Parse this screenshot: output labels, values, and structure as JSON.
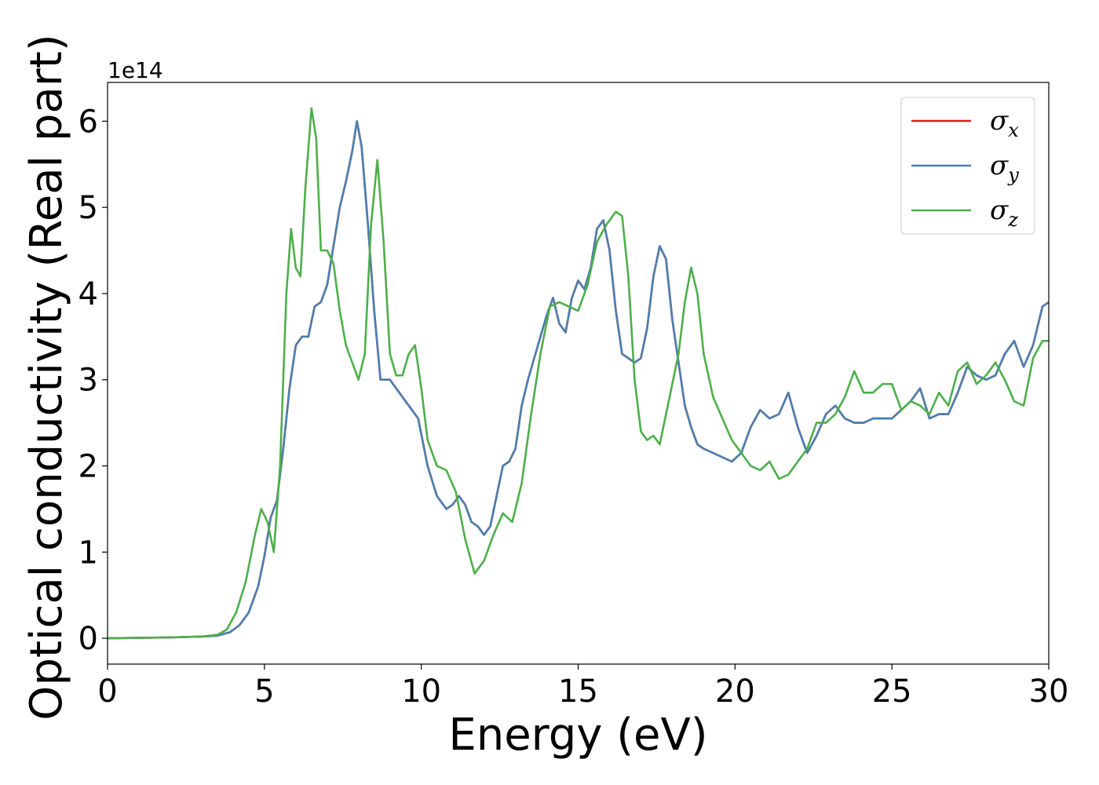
{
  "chart_data": {
    "type": "line",
    "xlabel": "Energy (eV)",
    "ylabel": "Optical conductivity (Real part)",
    "y_offset_text": "1e14",
    "xlim": [
      0,
      30
    ],
    "ylim": [
      -0.3,
      6.45
    ],
    "xticks": [
      0,
      5,
      10,
      15,
      20,
      25,
      30
    ],
    "yticks": [
      0,
      1,
      2,
      3,
      4,
      5,
      6
    ],
    "grid": false,
    "legend_position": "top-right",
    "series": [
      {
        "name": "σx",
        "symbol": "σ",
        "subscript": "x",
        "color": "#e41a1c",
        "x": [
          0,
          2,
          3,
          3.5,
          3.9,
          4.2,
          4.5,
          4.8,
          5,
          5.2,
          5.4,
          5.6,
          5.8,
          6,
          6.2,
          6.4,
          6.6,
          6.8,
          7,
          7.2,
          7.4,
          7.6,
          7.8,
          7.95,
          8.1,
          8.3,
          8.5,
          8.7,
          9,
          9.3,
          9.6,
          9.9,
          10.2,
          10.5,
          10.8,
          11,
          11.2,
          11.4,
          11.6,
          11.8,
          12,
          12.2,
          12.4,
          12.6,
          12.8,
          13,
          13.2,
          13.4,
          13.6,
          13.8,
          14,
          14.2,
          14.4,
          14.6,
          14.8,
          15,
          15.2,
          15.4,
          15.6,
          15.8,
          16,
          16.2,
          16.4,
          16.6,
          16.8,
          17,
          17.2,
          17.4,
          17.6,
          17.8,
          18,
          18.2,
          18.4,
          18.6,
          18.8,
          19,
          19.3,
          19.6,
          19.9,
          20.2,
          20.5,
          20.8,
          21.1,
          21.4,
          21.7,
          22,
          22.3,
          22.6,
          22.9,
          23.2,
          23.5,
          23.8,
          24.1,
          24.4,
          24.7,
          25,
          25.3,
          25.6,
          25.9,
          26.2,
          26.5,
          26.8,
          27.1,
          27.4,
          27.7,
          28,
          28.3,
          28.6,
          28.9,
          29.2,
          29.5,
          29.8,
          30
        ],
        "y": [
          0,
          0.01,
          0.02,
          0.03,
          0.07,
          0.15,
          0.3,
          0.6,
          0.95,
          1.4,
          1.6,
          2.2,
          2.9,
          3.4,
          3.5,
          3.5,
          3.85,
          3.9,
          4.1,
          4.55,
          5.0,
          5.3,
          5.65,
          6.0,
          5.7,
          4.8,
          3.8,
          3.0,
          3.0,
          2.85,
          2.7,
          2.55,
          2.0,
          1.65,
          1.5,
          1.55,
          1.65,
          1.55,
          1.35,
          1.3,
          1.2,
          1.3,
          1.65,
          2.0,
          2.05,
          2.2,
          2.7,
          3.0,
          3.25,
          3.5,
          3.75,
          3.95,
          3.65,
          3.55,
          3.95,
          4.15,
          4.05,
          4.3,
          4.75,
          4.85,
          4.5,
          3.8,
          3.3,
          3.25,
          3.2,
          3.25,
          3.6,
          4.2,
          4.55,
          4.4,
          3.7,
          3.2,
          2.7,
          2.45,
          2.25,
          2.2,
          2.15,
          2.1,
          2.05,
          2.15,
          2.45,
          2.65,
          2.55,
          2.6,
          2.85,
          2.45,
          2.15,
          2.35,
          2.6,
          2.7,
          2.55,
          2.5,
          2.5,
          2.55,
          2.55,
          2.55,
          2.65,
          2.75,
          2.9,
          2.55,
          2.6,
          2.6,
          2.85,
          3.15,
          3.05,
          3.0,
          3.05,
          3.3,
          3.45,
          3.15,
          3.4,
          3.85,
          3.9
        ]
      },
      {
        "name": "σy",
        "symbol": "σ",
        "subscript": "y",
        "color": "#4a7fb0",
        "x": [
          0,
          2,
          3,
          3.5,
          3.9,
          4.2,
          4.5,
          4.8,
          5,
          5.2,
          5.4,
          5.6,
          5.8,
          6,
          6.2,
          6.4,
          6.6,
          6.8,
          7,
          7.2,
          7.4,
          7.6,
          7.8,
          7.95,
          8.1,
          8.3,
          8.5,
          8.7,
          9,
          9.3,
          9.6,
          9.9,
          10.2,
          10.5,
          10.8,
          11,
          11.2,
          11.4,
          11.6,
          11.8,
          12,
          12.2,
          12.4,
          12.6,
          12.8,
          13,
          13.2,
          13.4,
          13.6,
          13.8,
          14,
          14.2,
          14.4,
          14.6,
          14.8,
          15,
          15.2,
          15.4,
          15.6,
          15.8,
          16,
          16.2,
          16.4,
          16.6,
          16.8,
          17,
          17.2,
          17.4,
          17.6,
          17.8,
          18,
          18.2,
          18.4,
          18.6,
          18.8,
          19,
          19.3,
          19.6,
          19.9,
          20.2,
          20.5,
          20.8,
          21.1,
          21.4,
          21.7,
          22,
          22.3,
          22.6,
          22.9,
          23.2,
          23.5,
          23.8,
          24.1,
          24.4,
          24.7,
          25,
          25.3,
          25.6,
          25.9,
          26.2,
          26.5,
          26.8,
          27.1,
          27.4,
          27.7,
          28,
          28.3,
          28.6,
          28.9,
          29.2,
          29.5,
          29.8,
          30
        ],
        "y": [
          0,
          0.01,
          0.02,
          0.03,
          0.07,
          0.15,
          0.3,
          0.6,
          0.95,
          1.4,
          1.6,
          2.2,
          2.9,
          3.4,
          3.5,
          3.5,
          3.85,
          3.9,
          4.1,
          4.55,
          5.0,
          5.3,
          5.65,
          6.0,
          5.7,
          4.8,
          3.8,
          3.0,
          3.0,
          2.85,
          2.7,
          2.55,
          2.0,
          1.65,
          1.5,
          1.55,
          1.65,
          1.55,
          1.35,
          1.3,
          1.2,
          1.3,
          1.65,
          2.0,
          2.05,
          2.2,
          2.7,
          3.0,
          3.25,
          3.5,
          3.75,
          3.95,
          3.65,
          3.55,
          3.95,
          4.15,
          4.05,
          4.3,
          4.75,
          4.85,
          4.5,
          3.8,
          3.3,
          3.25,
          3.2,
          3.25,
          3.6,
          4.2,
          4.55,
          4.4,
          3.7,
          3.2,
          2.7,
          2.45,
          2.25,
          2.2,
          2.15,
          2.1,
          2.05,
          2.15,
          2.45,
          2.65,
          2.55,
          2.6,
          2.85,
          2.45,
          2.15,
          2.35,
          2.6,
          2.7,
          2.55,
          2.5,
          2.5,
          2.55,
          2.55,
          2.55,
          2.65,
          2.75,
          2.9,
          2.55,
          2.6,
          2.6,
          2.85,
          3.15,
          3.05,
          3.0,
          3.05,
          3.3,
          3.45,
          3.15,
          3.4,
          3.85,
          3.9
        ]
      },
      {
        "name": "σz",
        "symbol": "σ",
        "subscript": "z",
        "color": "#4daf4a",
        "x": [
          0,
          2,
          3,
          3.5,
          3.8,
          4.1,
          4.4,
          4.7,
          4.9,
          5.1,
          5.3,
          5.5,
          5.7,
          5.85,
          6.0,
          6.15,
          6.3,
          6.5,
          6.65,
          6.8,
          7.0,
          7.2,
          7.4,
          7.6,
          7.8,
          8.0,
          8.2,
          8.4,
          8.6,
          8.8,
          9.0,
          9.2,
          9.4,
          9.6,
          9.8,
          10.0,
          10.2,
          10.5,
          10.8,
          11.1,
          11.4,
          11.7,
          12.0,
          12.3,
          12.6,
          12.9,
          13.2,
          13.5,
          13.8,
          14.1,
          14.4,
          14.7,
          15.0,
          15.3,
          15.6,
          15.9,
          16.2,
          16.4,
          16.6,
          16.8,
          17.0,
          17.2,
          17.4,
          17.6,
          17.8,
          18.0,
          18.2,
          18.4,
          18.6,
          18.8,
          19.0,
          19.3,
          19.6,
          19.9,
          20.2,
          20.5,
          20.8,
          21.1,
          21.4,
          21.7,
          22.0,
          22.3,
          22.6,
          22.9,
          23.2,
          23.5,
          23.8,
          24.1,
          24.4,
          24.7,
          25.0,
          25.3,
          25.6,
          25.9,
          26.2,
          26.5,
          26.8,
          27.1,
          27.4,
          27.7,
          28.0,
          28.3,
          28.6,
          28.9,
          29.2,
          29.5,
          29.8,
          30
        ],
        "y": [
          0,
          0.01,
          0.02,
          0.04,
          0.1,
          0.3,
          0.65,
          1.2,
          1.5,
          1.35,
          1.0,
          2.0,
          4.0,
          4.75,
          4.3,
          4.2,
          5.2,
          6.15,
          5.8,
          4.5,
          4.5,
          4.35,
          3.8,
          3.4,
          3.2,
          3.0,
          3.3,
          4.8,
          5.55,
          4.6,
          3.3,
          3.05,
          3.05,
          3.3,
          3.4,
          2.9,
          2.3,
          2.0,
          1.95,
          1.7,
          1.15,
          0.75,
          0.9,
          1.2,
          1.45,
          1.35,
          1.8,
          2.6,
          3.3,
          3.85,
          3.9,
          3.85,
          3.8,
          4.1,
          4.6,
          4.8,
          4.95,
          4.9,
          4.2,
          3.0,
          2.4,
          2.3,
          2.35,
          2.25,
          2.6,
          2.95,
          3.3,
          3.9,
          4.3,
          4.0,
          3.3,
          2.8,
          2.55,
          2.3,
          2.15,
          2.0,
          1.95,
          2.05,
          1.85,
          1.9,
          2.05,
          2.2,
          2.5,
          2.5,
          2.6,
          2.8,
          3.1,
          2.85,
          2.85,
          2.95,
          2.95,
          2.65,
          2.75,
          2.7,
          2.6,
          2.85,
          2.7,
          3.1,
          3.2,
          2.95,
          3.05,
          3.2,
          3.0,
          2.75,
          2.7,
          3.25,
          3.45,
          3.45
        ]
      }
    ]
  }
}
